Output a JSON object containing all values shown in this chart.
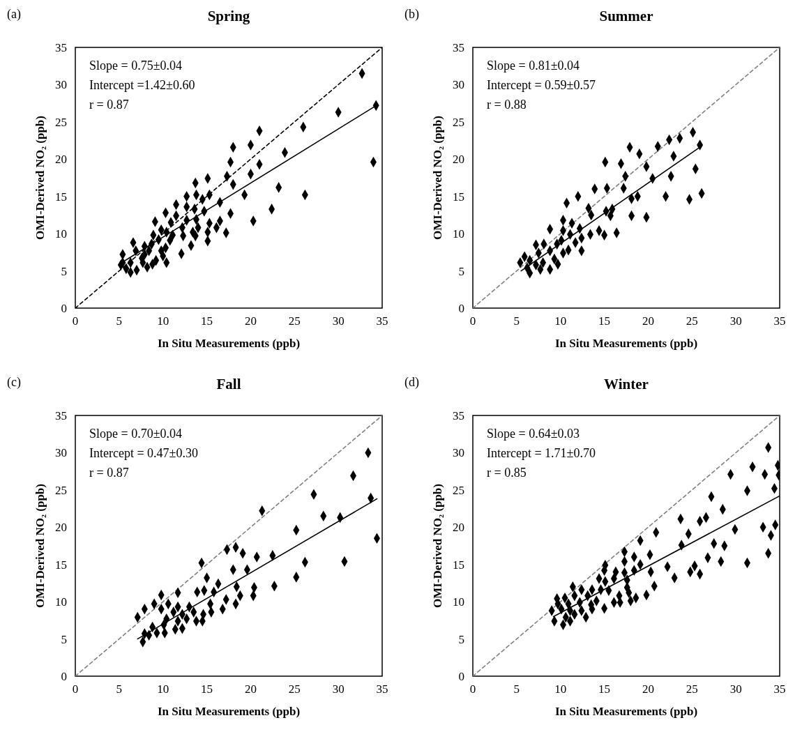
{
  "chart_data": [
    {
      "type": "scatter",
      "title": "Spring",
      "xlabel": "In Situ Measurements (ppb)",
      "ylabel": "OMI-Derived NO₂ (ppb)",
      "annotations": [
        "(a)",
        "Slope = 0.75±0.04",
        "Intercept =1.42±0.60",
        "r = 0.87"
      ],
      "xlim": [
        0,
        35
      ],
      "ylim": [
        0,
        35
      ],
      "xticks": [
        0,
        5,
        10,
        15,
        20,
        25,
        30,
        35
      ],
      "yticks": [
        0,
        5,
        10,
        15,
        20,
        25,
        30,
        35
      ],
      "marker": "diamond",
      "series": [
        {
          "type": "line",
          "marker": "none",
          "color": "#000000",
          "line_style": "dashed",
          "x": [
            0,
            35
          ],
          "values": [
            0,
            35
          ]
        },
        {
          "type": "line",
          "marker": "none",
          "color": "#000000",
          "line_style": "solid",
          "x": [
            5.0,
            34.2
          ],
          "values": [
            5.9,
            27.1
          ]
        },
        {
          "color": "#000000",
          "x": [
            32.7,
            34.3,
            34.0,
            30.0,
            26.0,
            26.2,
            23.9,
            23.2,
            22.4,
            21.0,
            21.0,
            20.3,
            20.0,
            20.0,
            18.0,
            17.7,
            17.3,
            18.0,
            19.3,
            17.7,
            16.5,
            16.5,
            16.1,
            17.2,
            15.1,
            13.7,
            15.3,
            13.8,
            14.5,
            12.7,
            12.7,
            13.6,
            14.7,
            11.5,
            10.3,
            11.5,
            10.9,
            12.7,
            13.8,
            15.3,
            15.1,
            15.1,
            14.0,
            13.7,
            13.2,
            13.4,
            12.3,
            12.2,
            9.1,
            9.8,
            8.9,
            10.4,
            11.1,
            10.8,
            10.3,
            12.1,
            9.5,
            8.7,
            10.0,
            10.4,
            9.2,
            8.4,
            7.9,
            6.6,
            6.9,
            7.6,
            8.2,
            7.7,
            7.0,
            6.3,
            5.4,
            5.8,
            5.2,
            6.3,
            5.4,
            8.8,
            9.8,
            7.9
          ],
          "values": [
            31.5,
            27.2,
            19.6,
            26.3,
            24.3,
            15.2,
            20.9,
            16.2,
            13.3,
            23.8,
            19.3,
            11.7,
            21.9,
            18.0,
            21.6,
            19.6,
            17.7,
            16.6,
            15.2,
            12.7,
            14.2,
            11.7,
            10.8,
            10.1,
            17.4,
            16.8,
            15.2,
            15.2,
            14.6,
            15.0,
            13.6,
            13.3,
            13.0,
            13.9,
            12.8,
            12.4,
            11.5,
            11.8,
            11.9,
            11.4,
            10.2,
            9.0,
            10.8,
            9.7,
            8.4,
            10.2,
            9.7,
            10.8,
            11.6,
            10.5,
            9.8,
            10.2,
            9.8,
            9.1,
            8.1,
            7.3,
            9.2,
            8.6,
            7.0,
            6.1,
            6.4,
            7.7,
            8.3,
            8.8,
            7.7,
            6.7,
            5.5,
            6.1,
            5.1,
            6.1,
            7.2,
            5.3,
            5.8,
            4.8,
            6.1,
            5.9,
            7.7,
            7.2
          ]
        }
      ]
    },
    {
      "type": "scatter",
      "title": "Summer",
      "xlabel": "In Situ Measurements (ppb)",
      "ylabel": "OMI-Derived NO₂ (ppb)",
      "annotations": [
        "(b)",
        "Slope = 0.81±0.04",
        "Intercept = 0.59±0.57",
        "r = 0.88"
      ],
      "xlim": [
        0,
        35
      ],
      "ylim": [
        0,
        35
      ],
      "xticks": [
        0,
        5,
        10,
        15,
        20,
        25,
        30,
        35
      ],
      "yticks": [
        0,
        5,
        10,
        15,
        20,
        25,
        30,
        35
      ],
      "marker": "diamond",
      "series": [
        {
          "type": "line",
          "marker": "none",
          "color": "#808080",
          "line_style": "dashed",
          "x": [
            0,
            35
          ],
          "values": [
            0,
            35
          ]
        },
        {
          "type": "line",
          "marker": "none",
          "color": "#000000",
          "line_style": "solid",
          "x": [
            5.5,
            25.9
          ],
          "values": [
            5.0,
            21.6
          ]
        },
        {
          "color": "#000000",
          "x": [
            25.1,
            23.6,
            22.4,
            21.1,
            17.9,
            25.9,
            19.0,
            22.9,
            15.1,
            16.9,
            19.8,
            25.4,
            17.4,
            22.6,
            20.5,
            13.9,
            15.3,
            17.2,
            12.0,
            18.1,
            18.8,
            22.0,
            24.7,
            26.1,
            10.7,
            13.2,
            15.2,
            15.9,
            13.5,
            15.7,
            18.1,
            19.8,
            10.3,
            11.3,
            8.8,
            10.3,
            12.2,
            14.4,
            13.4,
            15.0,
            16.4,
            11.1,
            12.4,
            10.1,
            11.7,
            12.4,
            10.9,
            9.6,
            8.1,
            7.2,
            8.8,
            7.5,
            5.9,
            5.4,
            6.5,
            7.2,
            8.0,
            9.7,
            8.8,
            7.7,
            6.5,
            6.2,
            10.3,
            9.3
          ],
          "values": [
            23.6,
            22.8,
            22.6,
            21.7,
            21.6,
            21.9,
            20.7,
            20.4,
            19.6,
            19.4,
            19.0,
            18.7,
            17.7,
            17.7,
            17.4,
            16.0,
            16.1,
            16.1,
            15.0,
            14.7,
            15.0,
            15.0,
            14.6,
            15.4,
            14.1,
            13.4,
            13.0,
            13.3,
            12.5,
            12.4,
            12.4,
            12.2,
            11.8,
            11.4,
            10.6,
            10.4,
            10.7,
            10.4,
            9.9,
            9.8,
            10.1,
            9.9,
            9.4,
            9.1,
            8.8,
            7.7,
            7.8,
            8.6,
            8.6,
            8.5,
            7.7,
            7.4,
            6.9,
            6.1,
            6.4,
            5.8,
            6.1,
            5.9,
            5.2,
            5.2,
            4.7,
            5.4,
            7.4,
            6.6
          ]
        }
      ]
    },
    {
      "type": "scatter",
      "title": "Fall",
      "xlabel": "In Situ Measurements (ppb)",
      "ylabel": "OMI-Derived NO₂ (ppb)",
      "annotations": [
        "(c)",
        "Slope = 0.70±0.04",
        "Intercept = 0.47±0.30",
        "r = 0.87"
      ],
      "xlim": [
        0,
        35
      ],
      "ylim": [
        0,
        35
      ],
      "xticks": [
        0,
        5,
        10,
        15,
        20,
        25,
        30,
        35
      ],
      "yticks": [
        0,
        5,
        10,
        15,
        20,
        25,
        30,
        35
      ],
      "marker": "diamond",
      "series": [
        {
          "type": "line",
          "marker": "none",
          "color": "#808080",
          "line_style": "dashed",
          "x": [
            0,
            35
          ],
          "values": [
            0,
            35
          ]
        },
        {
          "type": "line",
          "marker": "none",
          "color": "#000000",
          "line_style": "solid",
          "x": [
            7.1,
            34.4
          ],
          "values": [
            5.0,
            23.8
          ]
        },
        {
          "color": "#000000",
          "x": [
            33.4,
            31.7,
            27.2,
            33.7,
            21.3,
            28.3,
            30.2,
            25.2,
            34.4,
            17.3,
            18.3,
            19.1,
            20.7,
            22.5,
            14.4,
            26.2,
            30.7,
            18.0,
            19.6,
            25.2,
            15.0,
            16.3,
            18.4,
            20.4,
            22.7,
            13.9,
            14.7,
            15.8,
            9.8,
            11.7,
            18.8,
            20.3,
            17.2,
            9.0,
            10.6,
            11.7,
            13.0,
            15.4,
            18.3,
            16.8,
            7.9,
            7.1,
            9.8,
            11.2,
            12.2,
            13.5,
            14.6,
            15.5,
            10.4,
            11.7,
            12.7,
            13.8,
            14.5,
            10.1,
            8.8,
            11.4,
            12.2,
            7.9,
            9.3,
            10.2,
            8.4,
            7.7
          ],
          "values": [
            30.0,
            26.9,
            24.4,
            23.9,
            22.2,
            21.5,
            21.3,
            19.6,
            18.5,
            17.0,
            17.3,
            16.5,
            16.0,
            16.2,
            15.2,
            15.3,
            15.4,
            14.3,
            14.3,
            13.3,
            13.2,
            12.4,
            12.0,
            11.9,
            12.1,
            11.3,
            11.5,
            11.3,
            10.9,
            11.2,
            10.8,
            10.8,
            10.3,
            9.7,
            9.7,
            9.3,
            9.3,
            9.7,
            9.7,
            9.0,
            9.0,
            7.9,
            9.0,
            8.6,
            8.3,
            8.6,
            8.3,
            8.6,
            7.7,
            7.4,
            7.7,
            7.4,
            7.4,
            6.9,
            6.6,
            6.3,
            6.4,
            5.7,
            5.8,
            5.8,
            5.5,
            4.6
          ]
        }
      ]
    },
    {
      "type": "scatter",
      "title": "Winter",
      "xlabel": "In Situ Measurements (ppb)",
      "ylabel": "OMI-Derived NO₂ (ppb)",
      "annotations": [
        "(d)",
        "Slope = 0.64±0.03",
        "Intercept = 1.71±0.70",
        "r = 0.85"
      ],
      "xlim": [
        0,
        35
      ],
      "ylim": [
        0,
        35
      ],
      "xticks": [
        0,
        5,
        10,
        15,
        20,
        25,
        30,
        35
      ],
      "yticks": [
        0,
        5,
        10,
        15,
        20,
        25,
        30,
        35
      ],
      "marker": "diamond",
      "series": [
        {
          "type": "line",
          "marker": "none",
          "color": "#808080",
          "line_style": "dashed",
          "x": [
            0,
            35
          ],
          "values": [
            0,
            35
          ]
        },
        {
          "type": "line",
          "marker": "none",
          "color": "#000000",
          "line_style": "solid",
          "x": [
            9.2,
            35.0
          ],
          "values": [
            8.0,
            24.2
          ]
        },
        {
          "color": "#000000",
          "x": [
            33.7,
            31.9,
            34.8,
            29.4,
            33.3,
            34.9,
            31.3,
            34.4,
            27.2,
            28.5,
            23.7,
            25.9,
            26.6,
            24.6,
            29.9,
            33.1,
            34.5,
            34.0,
            20.9,
            19.1,
            23.8,
            27.5,
            28.7,
            17.3,
            20.2,
            18.4,
            17.3,
            26.8,
            28.3,
            33.7,
            31.3,
            19.1,
            15.1,
            15.0,
            16.3,
            18.4,
            22.2,
            20.3,
            25.3,
            24.8,
            25.9,
            23.0,
            17.3,
            14.4,
            15.1,
            16.1,
            17.6,
            20.7,
            11.4,
            12.4,
            13.6,
            14.6,
            15.5,
            17.6,
            17.8,
            16.7,
            18.0,
            18.6,
            19.8,
            16.1,
            16.8,
            15.0,
            14.1,
            13.1,
            11.6,
            10.5,
            9.6,
            9.7,
            10.9,
            12.2,
            13.5,
            9.0,
            10.1,
            11.1,
            12.4,
            13.6,
            10.6,
            11.6,
            9.3,
            10.3,
            11.1,
            12.9
          ],
          "values": [
            30.7,
            28.1,
            28.3,
            27.1,
            27.1,
            27.0,
            24.9,
            25.2,
            24.1,
            22.4,
            21.1,
            20.8,
            21.3,
            19.1,
            19.7,
            20.0,
            20.3,
            18.9,
            19.3,
            18.2,
            17.6,
            17.8,
            17.5,
            16.7,
            16.3,
            16.0,
            15.4,
            15.9,
            15.4,
            16.5,
            15.2,
            15.0,
            14.9,
            14.2,
            14.0,
            14.2,
            14.7,
            14.0,
            14.8,
            14.0,
            13.7,
            13.2,
            13.9,
            13.1,
            12.7,
            13.1,
            12.9,
            12.1,
            12.0,
            11.6,
            11.6,
            11.6,
            11.5,
            11.9,
            11.2,
            10.8,
            10.1,
            10.5,
            10.9,
            9.9,
            9.9,
            9.1,
            10.1,
            10.8,
            10.8,
            10.5,
            10.4,
            9.7,
            9.7,
            9.9,
            9.6,
            8.8,
            9.0,
            8.8,
            8.8,
            9.0,
            7.9,
            8.3,
            7.4,
            6.9,
            7.4,
            7.9
          ]
        }
      ]
    }
  ]
}
